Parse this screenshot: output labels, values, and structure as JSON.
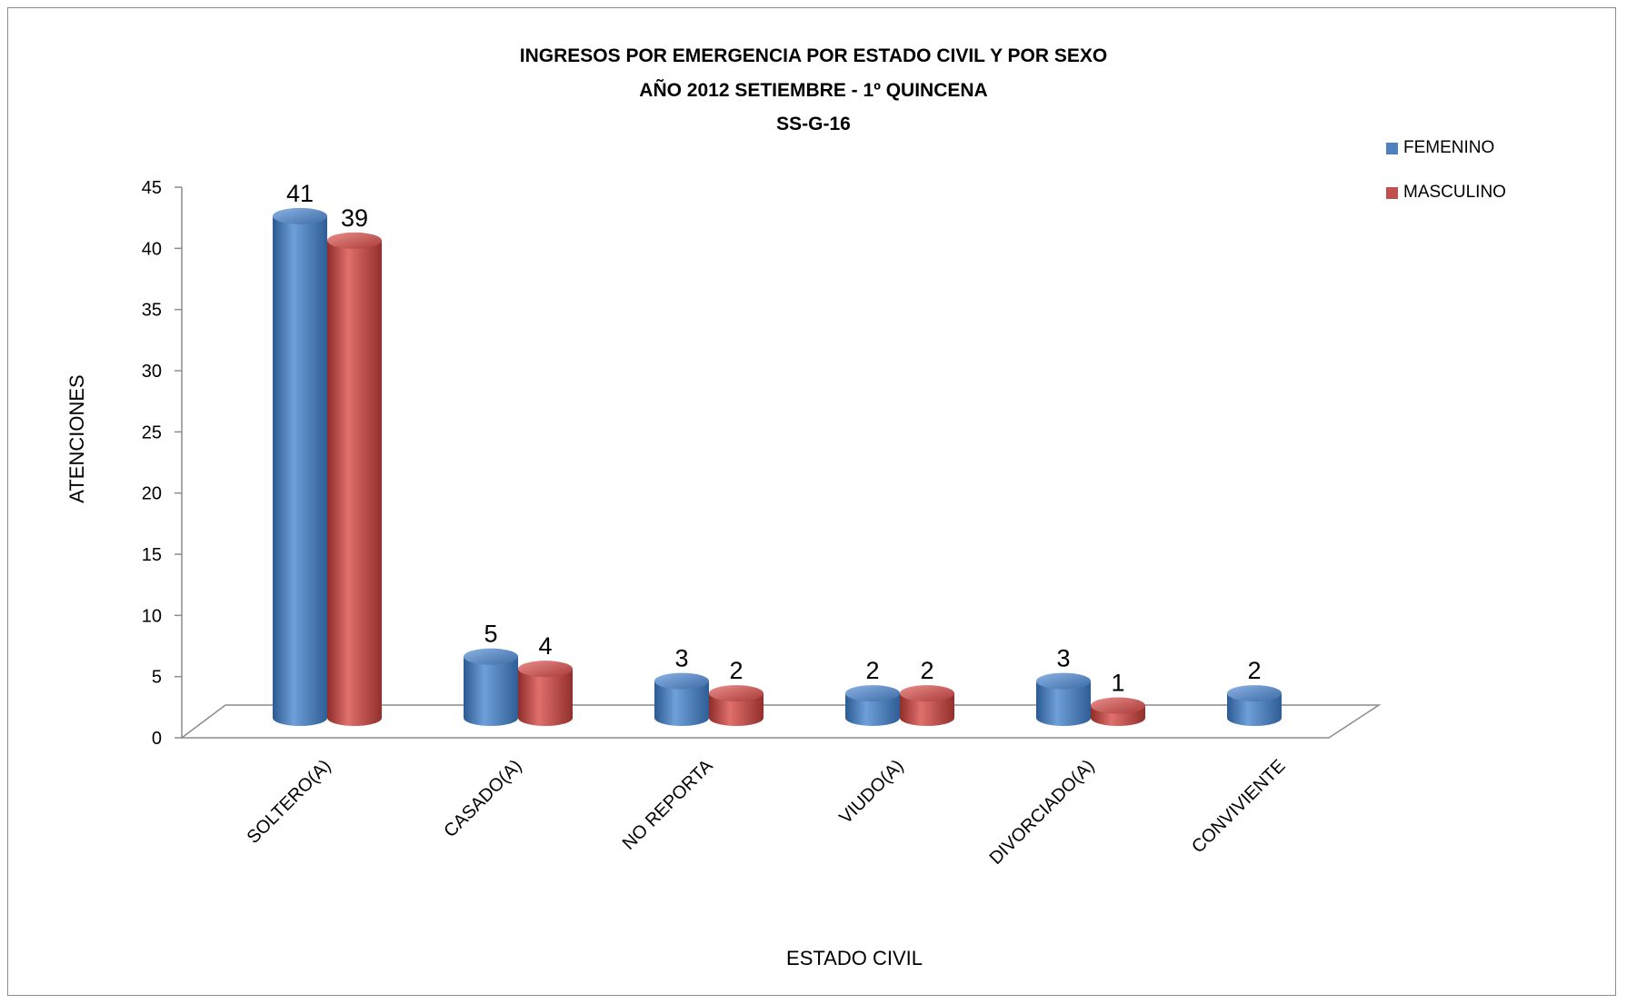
{
  "chart_data": {
    "type": "bar",
    "title": [
      "INGRESOS POR EMERGENCIA POR ESTADO CIVIL Y POR SEXO",
      "AÑO 2012 SETIEMBRE - 1º QUINCENA",
      "SS-G-16"
    ],
    "xlabel": "ESTADO CIVIL",
    "ylabel": "ATENCIONES",
    "ylim": [
      0,
      45
    ],
    "yticks": [
      0,
      5,
      10,
      15,
      20,
      25,
      30,
      35,
      40,
      45
    ],
    "categories": [
      "SOLTERO(A)",
      "CASADO(A)",
      "NO REPORTA",
      "VIUDO(A)",
      "DIVORCIADO(A)",
      "CONVIVIENTE"
    ],
    "series": [
      {
        "name": "FEMENINO",
        "color": "#4f81bd",
        "values": [
          41,
          5,
          3,
          2,
          3,
          2
        ]
      },
      {
        "name": "MASCULINO",
        "color": "#c0504d",
        "values": [
          39,
          4,
          2,
          2,
          1,
          null
        ]
      }
    ],
    "legend_position": "top-right",
    "grid": false,
    "style": "3d-cylinder"
  }
}
